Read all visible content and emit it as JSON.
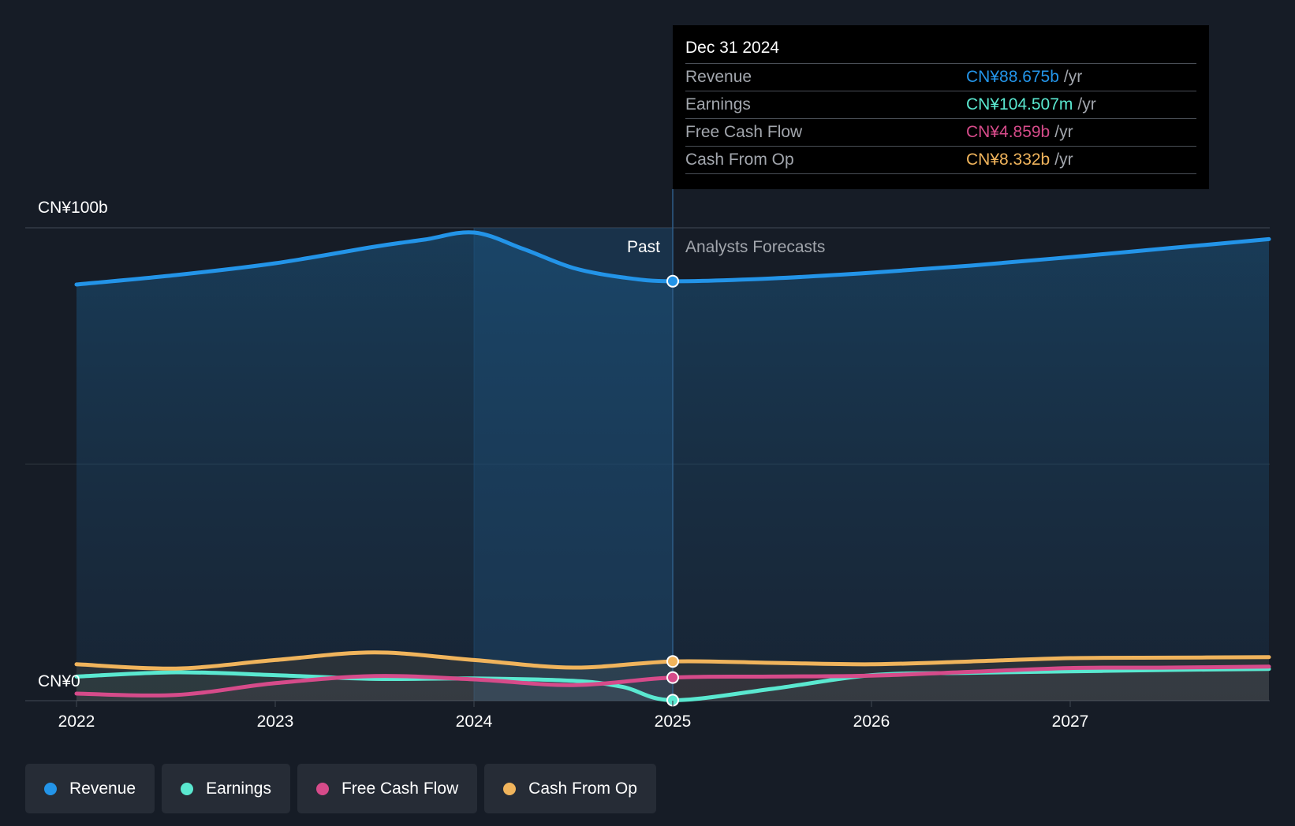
{
  "tooltip": {
    "date": "Dec 31 2024",
    "rows": [
      {
        "label": "Revenue",
        "value": "CN¥88.675b",
        "unit": "/yr",
        "color": "#2394e8"
      },
      {
        "label": "Earnings",
        "value": "CN¥104.507m",
        "unit": "/yr",
        "color": "#5ae8d0"
      },
      {
        "label": "Free Cash Flow",
        "value": "CN¥4.859b",
        "unit": "/yr",
        "color": "#d64b8a"
      },
      {
        "label": "Cash From Op",
        "value": "CN¥8.332b",
        "unit": "/yr",
        "color": "#f0b45c"
      }
    ]
  },
  "labels": {
    "past": "Past",
    "forecast": "Analysts Forecasts",
    "y_top": "CN¥100b",
    "y_bottom": "CN¥0"
  },
  "legend": [
    {
      "label": "Revenue",
      "color": "#2394e8"
    },
    {
      "label": "Earnings",
      "color": "#5ae8d0"
    },
    {
      "label": "Free Cash Flow",
      "color": "#d64b8a"
    },
    {
      "label": "Cash From Op",
      "color": "#f0b45c"
    }
  ],
  "chart_data": {
    "type": "line",
    "x_ticks": [
      "2022",
      "2023",
      "2024",
      "2025",
      "2026",
      "2027"
    ],
    "ylim": [
      0,
      100
    ],
    "y_unit": "CN¥b",
    "divider_x": 2025.0,
    "series": [
      {
        "name": "Revenue",
        "color": "#2394e8",
        "points": [
          [
            2022.0,
            88.0
          ],
          [
            2022.5,
            90.0
          ],
          [
            2023.0,
            92.5
          ],
          [
            2023.5,
            96.0
          ],
          [
            2023.75,
            97.5
          ],
          [
            2024.0,
            99.0
          ],
          [
            2024.25,
            95.5
          ],
          [
            2024.5,
            91.5
          ],
          [
            2024.75,
            89.5
          ],
          [
            2025.0,
            88.7
          ],
          [
            2025.5,
            89.3
          ],
          [
            2026.0,
            90.5
          ],
          [
            2026.5,
            92.0
          ],
          [
            2027.0,
            93.8
          ],
          [
            2027.5,
            95.7
          ],
          [
            2028.0,
            97.6
          ]
        ]
      },
      {
        "name": "Earnings",
        "color": "#5ae8d0",
        "points": [
          [
            2022.0,
            5.1
          ],
          [
            2022.5,
            6.0
          ],
          [
            2023.0,
            5.4
          ],
          [
            2023.5,
            4.6
          ],
          [
            2024.0,
            4.7
          ],
          [
            2024.5,
            4.2
          ],
          [
            2024.75,
            2.9
          ],
          [
            2025.0,
            0.1
          ],
          [
            2025.5,
            2.5
          ],
          [
            2026.0,
            5.4
          ],
          [
            2026.5,
            5.9
          ],
          [
            2027.0,
            6.2
          ],
          [
            2027.5,
            6.5
          ],
          [
            2028.0,
            6.7
          ]
        ]
      },
      {
        "name": "Free Cash Flow",
        "color": "#d64b8a",
        "points": [
          [
            2022.0,
            1.5
          ],
          [
            2022.5,
            1.2
          ],
          [
            2023.0,
            3.7
          ],
          [
            2023.5,
            5.2
          ],
          [
            2024.0,
            4.5
          ],
          [
            2024.5,
            3.3
          ],
          [
            2025.0,
            4.9
          ],
          [
            2025.5,
            5.1
          ],
          [
            2026.0,
            5.3
          ],
          [
            2026.5,
            6.1
          ],
          [
            2027.0,
            6.9
          ],
          [
            2027.5,
            7.0
          ],
          [
            2028.0,
            7.2
          ]
        ]
      },
      {
        "name": "Cash From Op",
        "color": "#f0b45c",
        "points": [
          [
            2022.0,
            7.7
          ],
          [
            2022.5,
            6.8
          ],
          [
            2023.0,
            8.6
          ],
          [
            2023.5,
            10.2
          ],
          [
            2024.0,
            8.6
          ],
          [
            2024.5,
            7.0
          ],
          [
            2025.0,
            8.3
          ],
          [
            2025.5,
            8.0
          ],
          [
            2026.0,
            7.7
          ],
          [
            2026.5,
            8.3
          ],
          [
            2027.0,
            9.0
          ],
          [
            2027.5,
            9.1
          ],
          [
            2028.0,
            9.2
          ]
        ]
      }
    ]
  }
}
